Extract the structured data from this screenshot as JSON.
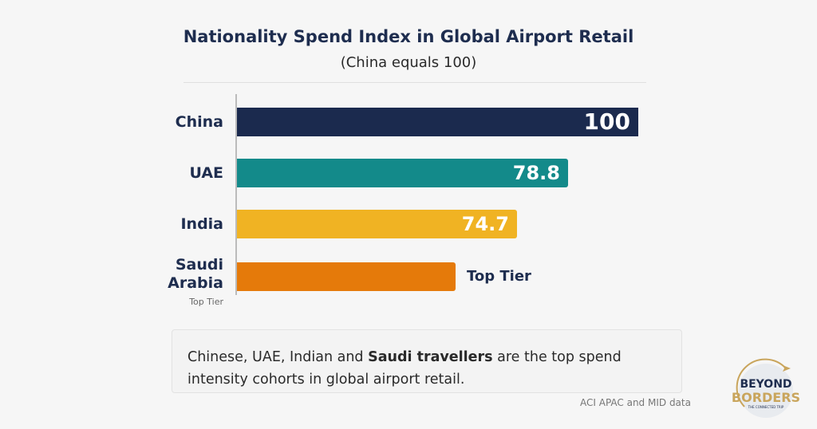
{
  "chart_data": {
    "type": "bar",
    "orientation": "horizontal",
    "title": "Nationality Spend Index in Global Airport Retail",
    "subtitle": "(China equals 100)",
    "categories": [
      "China",
      "UAE",
      "India",
      "Saudi Arabia"
    ],
    "category_sublabels": [
      "",
      "",
      "",
      "Top Tier"
    ],
    "values": [
      100,
      78.8,
      74.7,
      null
    ],
    "data_labels": [
      "100",
      "78.8",
      "74.7",
      "Top Tier"
    ],
    "colors": [
      "#1b2a4e",
      "#138a8a",
      "#f0b323",
      "#e57a0a"
    ],
    "xlim": [
      0,
      100
    ],
    "grid": false
  },
  "note": {
    "pre": "Chinese, UAE, Indian and ",
    "bold": "Saudi travellers",
    "post": " are the top spend intensity cohorts in global airport retail."
  },
  "source": "ACI APAC and MID data",
  "logo": {
    "line1": "BEYOND",
    "line2": "BORDERS",
    "tagline": "THE CONNECTED TRIP"
  }
}
